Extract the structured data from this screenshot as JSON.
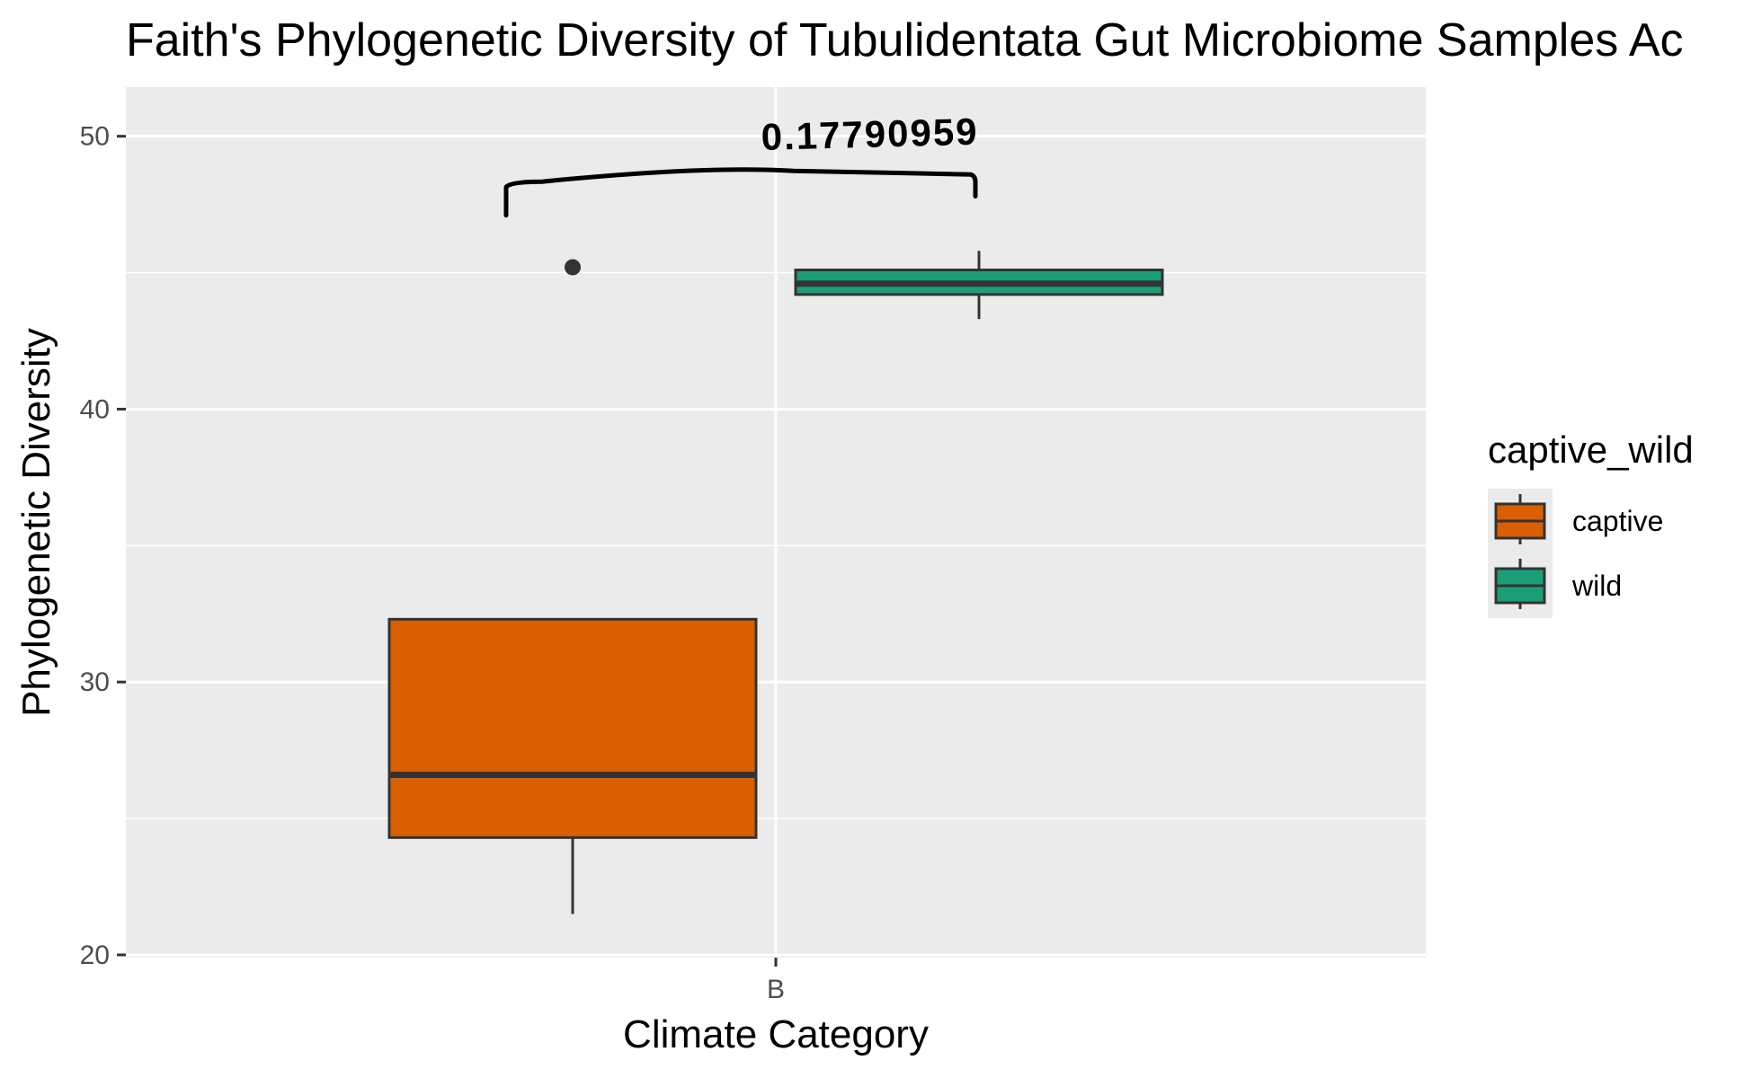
{
  "chart_data": {
    "type": "box",
    "title": "Faith's Phylogenetic Diversity of Tubulidentata Gut Microbiome Samples Ac",
    "xlabel": "Climate Category",
    "ylabel": "Phylogenetic Diversity",
    "categories": [
      "B"
    ],
    "ylim": [
      19.9,
      51.8
    ],
    "yticks": [
      20,
      30,
      40,
      50
    ],
    "grid": true,
    "legend": {
      "title": "captive_wild",
      "position": "right",
      "entries": [
        "captive",
        "wild"
      ]
    },
    "series": [
      {
        "name": "captive",
        "color": "#D95F02",
        "category": "B",
        "whisker_low": 21.5,
        "q1": 24.3,
        "median": 26.6,
        "q3": 32.3,
        "whisker_high": 32.3,
        "outliers": [
          45.2
        ]
      },
      {
        "name": "wild",
        "color": "#1B9E77",
        "category": "B",
        "whisker_low": 43.3,
        "q1": 44.2,
        "median": 44.6,
        "q3": 45.1,
        "whisker_high": 45.8,
        "outliers": []
      }
    ],
    "annotation": {
      "text": "0.17790959",
      "style": "handwritten bracket comparing captive and wild"
    },
    "panel_background": "#EBEBEB",
    "grid_color": "#FFFFFF",
    "outline_color": "#333333"
  }
}
